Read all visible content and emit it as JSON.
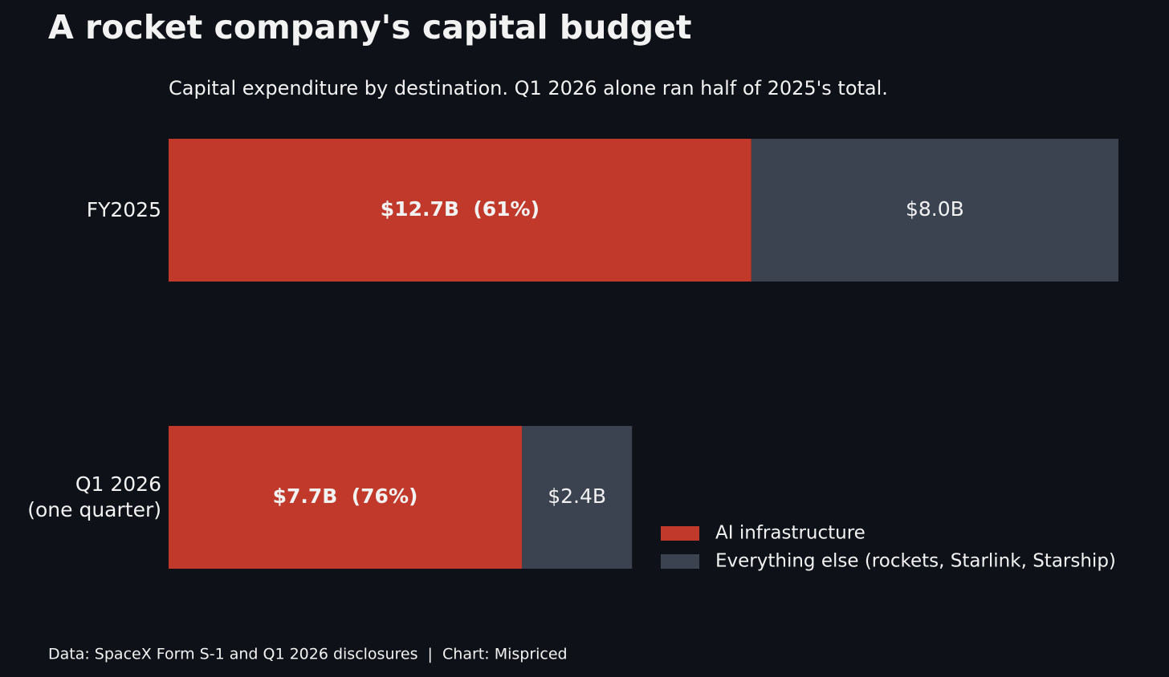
{
  "chart_data": {
    "type": "stacked-bar-horizontal",
    "title": "A rocket company's capital budget",
    "subtitle": "Capital expenditure by destination. Q1 2026 alone ran half of 2025's total.",
    "categories": [
      "FY2025",
      "Q1 2026\n(one quarter)"
    ],
    "series": [
      {
        "name": "AI infrastructure",
        "color": "#c0392b",
        "values": [
          12.7,
          7.7
        ],
        "value_labels": [
          "$12.7B  (61%)",
          "$7.7B  (76%)"
        ]
      },
      {
        "name": "Everything else (rockets, Starlink, Starship)",
        "color": "#3b4250",
        "values": [
          8.0,
          2.4
        ],
        "value_labels": [
          "$8.0B",
          "$2.4B"
        ]
      }
    ],
    "legend": "lower right",
    "footer": "Data: SpaceX Form S-1 and Q1 2026 disclosures  |  Chart: Mispriced"
  }
}
